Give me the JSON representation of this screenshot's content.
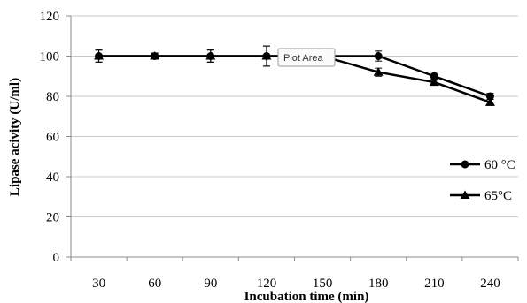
{
  "chart_data": {
    "type": "line",
    "title": "",
    "xlabel": "Incubation time (min)",
    "ylabel": "Lipase acivity (U/ml)",
    "x": [
      30,
      60,
      90,
      120,
      150,
      180,
      210,
      240
    ],
    "ylim": [
      0,
      120
    ],
    "yticks": [
      0,
      20,
      40,
      60,
      80,
      100,
      120
    ],
    "grid": "horizontal",
    "legend_position": "right",
    "series": [
      {
        "name": "60 °C",
        "marker": "circle",
        "values": [
          100,
          100,
          100,
          100,
          100,
          100,
          90,
          80
        ],
        "errors": [
          3,
          1.5,
          3,
          5,
          2,
          2.5,
          2,
          1.5
        ]
      },
      {
        "name": "65°C",
        "marker": "triangle",
        "values": [
          100,
          100,
          100,
          100,
          100,
          92,
          87,
          77
        ],
        "errors": [
          3,
          1.5,
          3,
          5,
          2,
          2,
          1.5,
          1.5
        ]
      }
    ],
    "line_color": "#000000",
    "grid_color": "#c8c8c8"
  },
  "tooltip": {
    "label": "Plot Area"
  }
}
